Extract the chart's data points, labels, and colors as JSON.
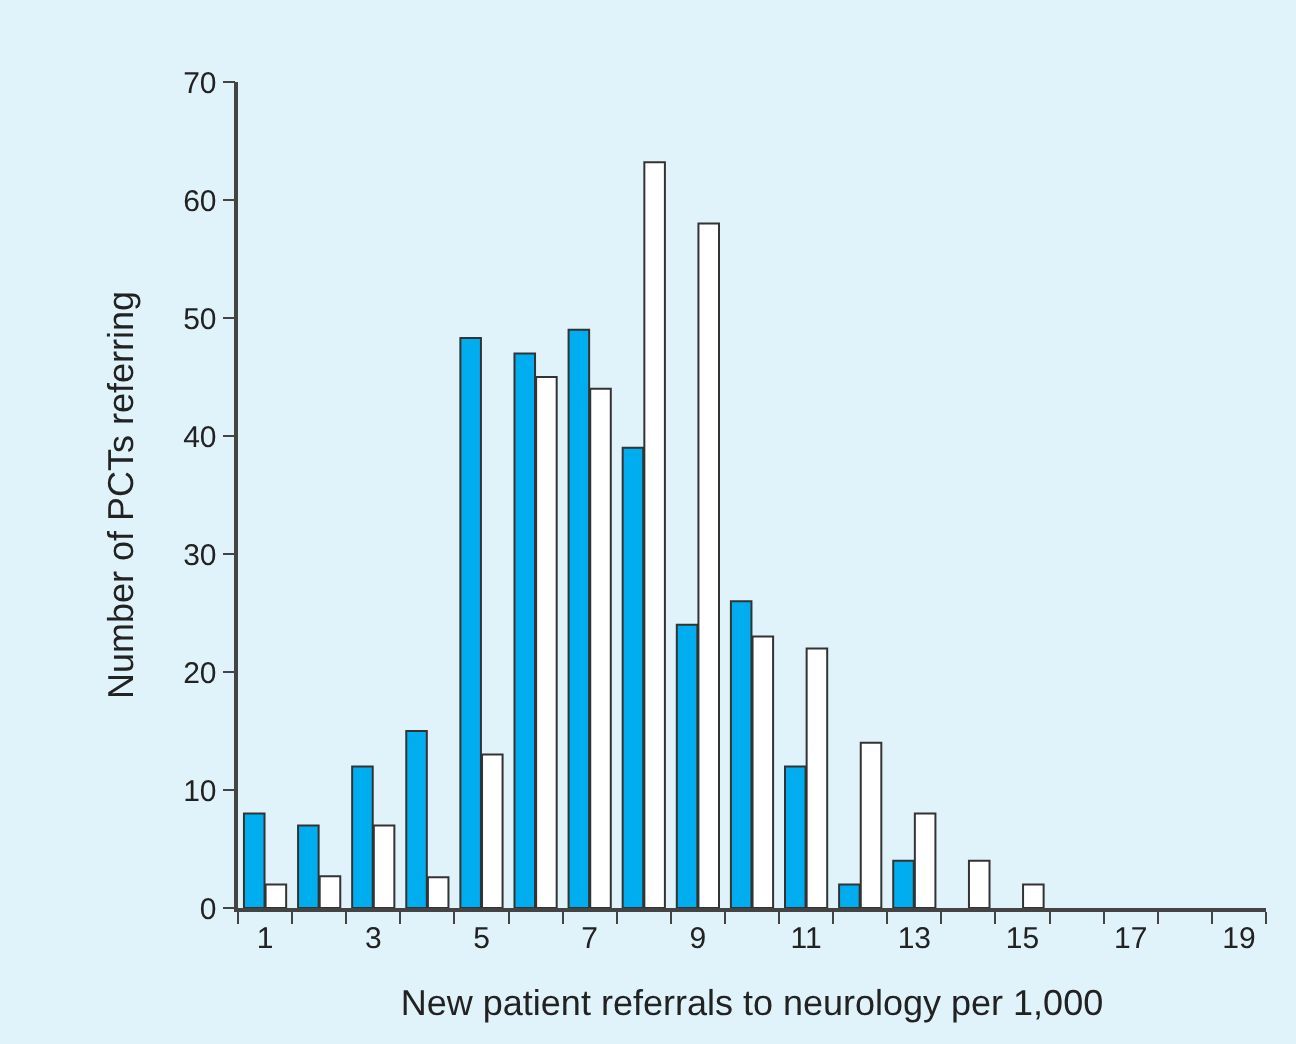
{
  "chart_data": {
    "type": "bar",
    "xlabel": "New patient referrals to neurology per 1,000",
    "ylabel": "Number of PCTs referring",
    "x": [
      1,
      2,
      3,
      4,
      5,
      6,
      7,
      8,
      9,
      10,
      11,
      12,
      13,
      14,
      15,
      16,
      17,
      18,
      19
    ],
    "series": [
      {
        "color": "#00aeef",
        "values": [
          8,
          7,
          12,
          15,
          48.3,
          47,
          49,
          39,
          24,
          26,
          12,
          2,
          4,
          0,
          0,
          0,
          0,
          0,
          0
        ]
      },
      {
        "color": "#ffffff",
        "values": [
          2,
          2.7,
          7,
          2.6,
          13,
          45,
          44,
          63.2,
          58,
          23,
          22,
          14,
          8,
          4,
          2,
          0,
          0,
          0,
          0
        ]
      }
    ],
    "xlim": [
      0.5,
      19.5
    ],
    "xticks": [
      1,
      3,
      5,
      7,
      9,
      11,
      13,
      15,
      17,
      19
    ],
    "ylim": [
      0,
      70
    ],
    "yticks": [
      0,
      10,
      20,
      30,
      40,
      50,
      60,
      70
    ],
    "grid": false
  }
}
